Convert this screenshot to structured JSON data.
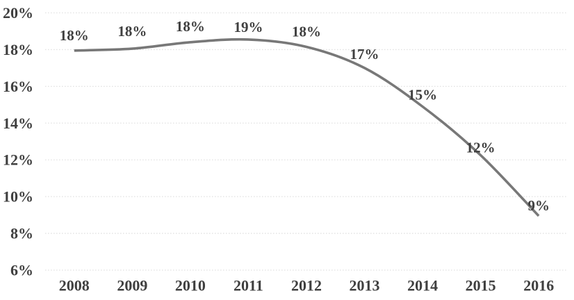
{
  "chart_data": {
    "type": "line",
    "title": "",
    "xlabel": "",
    "ylabel": "",
    "categories": [
      "2008",
      "2009",
      "2010",
      "2011",
      "2012",
      "2013",
      "2014",
      "2015",
      "2016"
    ],
    "values": [
      18,
      18,
      18,
      19,
      18,
      17,
      15,
      12,
      9
    ],
    "data_labels": [
      "18%",
      "18%",
      "18%",
      "19%",
      "18%",
      "17%",
      "15%",
      "12%",
      "9%"
    ],
    "values_precise_as_drawn": [
      17.95,
      18.05,
      18.4,
      18.55,
      18.15,
      17.0,
      14.9,
      12.25,
      8.95
    ],
    "ylim": [
      6,
      20
    ],
    "y_tick_values": [
      20,
      18,
      16,
      14,
      12,
      10,
      8,
      6
    ],
    "y_tick_labels": [
      "20%",
      "18%",
      "16%",
      "14%",
      "12%",
      "10%",
      "8%",
      "6%"
    ],
    "grid": "horizontal-dotted",
    "legend": "none",
    "line_smoothing": true,
    "point_markers": false,
    "colors": {
      "line": "#787878",
      "text": "#3f3f3f",
      "gridline": "#e2e2e2",
      "background": "#ffffff"
    }
  }
}
